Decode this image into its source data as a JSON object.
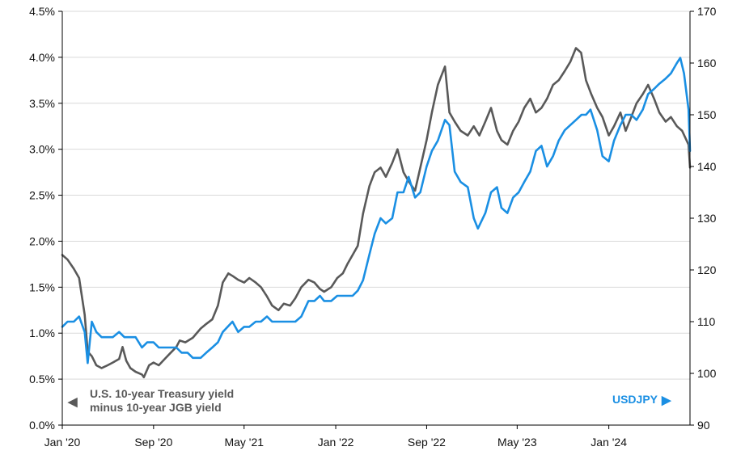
{
  "chart_data": {
    "type": "line",
    "x_tick_labels": [
      "Jan '20",
      "Sep '20",
      "May '21",
      "Jan '22",
      "Sep '22",
      "May '23",
      "Jan '24"
    ],
    "left_axis": {
      "ylim": [
        0,
        4.5
      ],
      "tick_labels": [
        "0.0%",
        "0.5%",
        "1.0%",
        "1.5%",
        "2.0%",
        "2.5%",
        "3.0%",
        "3.5%",
        "4.0%",
        "4.5%"
      ]
    },
    "right_axis": {
      "ylim": [
        90,
        170
      ],
      "tick_labels": [
        "90",
        "100",
        "110",
        "120",
        "130",
        "140",
        "150",
        "160",
        "170"
      ]
    },
    "grid": true,
    "series": [
      {
        "name": "U.S. 10-year Treasury yield minus 10-year JGB yield",
        "axis": "left",
        "color": "#595959",
        "legend_lines": [
          "U.S. 10-year Treasury yield",
          "minus 10-year JGB yield"
        ],
        "legend_marker": "◀",
        "x": [
          "2020-01-01",
          "2020-01-15",
          "2020-02-01",
          "2020-02-15",
          "2020-03-01",
          "2020-03-09",
          "2020-03-20",
          "2020-04-01",
          "2020-04-15",
          "2020-05-01",
          "2020-05-15",
          "2020-06-01",
          "2020-06-10",
          "2020-06-20",
          "2020-07-01",
          "2020-07-15",
          "2020-08-01",
          "2020-08-06",
          "2020-08-20",
          "2020-09-01",
          "2020-09-15",
          "2020-10-01",
          "2020-10-15",
          "2020-11-01",
          "2020-11-10",
          "2020-11-25",
          "2020-12-15",
          "2021-01-05",
          "2021-01-20",
          "2021-02-05",
          "2021-02-20",
          "2021-03-05",
          "2021-03-20",
          "2021-04-01",
          "2021-04-15",
          "2021-05-01",
          "2021-05-15",
          "2021-06-01",
          "2021-06-15",
          "2021-07-01",
          "2021-07-15",
          "2021-08-01",
          "2021-08-15",
          "2021-09-01",
          "2021-09-15",
          "2021-10-01",
          "2021-10-20",
          "2021-11-05",
          "2021-11-20",
          "2021-12-01",
          "2021-12-20",
          "2022-01-05",
          "2022-01-20",
          "2022-02-01",
          "2022-02-15",
          "2022-03-01",
          "2022-03-15",
          "2022-04-01",
          "2022-04-15",
          "2022-05-01",
          "2022-05-15",
          "2022-06-01",
          "2022-06-15",
          "2022-07-01",
          "2022-07-15",
          "2022-08-01",
          "2022-08-15",
          "2022-09-01",
          "2022-09-15",
          "2022-10-01",
          "2022-10-20",
          "2022-11-01",
          "2022-11-15",
          "2022-12-01",
          "2022-12-20",
          "2023-01-05",
          "2023-01-20",
          "2023-02-05",
          "2023-02-20",
          "2023-03-08",
          "2023-03-20",
          "2023-04-05",
          "2023-04-20",
          "2023-05-05",
          "2023-05-20",
          "2023-06-05",
          "2023-06-20",
          "2023-07-05",
          "2023-07-20",
          "2023-08-05",
          "2023-08-20",
          "2023-09-05",
          "2023-09-20",
          "2023-10-05",
          "2023-10-19",
          "2023-11-01",
          "2023-11-15",
          "2023-12-01",
          "2023-12-15",
          "2024-01-01",
          "2024-01-15",
          "2024-02-01",
          "2024-02-15",
          "2024-03-01",
          "2024-03-15",
          "2024-04-01",
          "2024-04-15",
          "2024-05-01",
          "2024-05-15",
          "2024-06-01",
          "2024-06-15",
          "2024-07-01",
          "2024-07-15",
          "2024-08-01",
          "2024-08-05"
        ],
        "values": [
          1.85,
          1.8,
          1.7,
          1.6,
          1.2,
          0.8,
          0.75,
          0.65,
          0.62,
          0.65,
          0.68,
          0.72,
          0.85,
          0.7,
          0.62,
          0.58,
          0.55,
          0.52,
          0.65,
          0.68,
          0.65,
          0.72,
          0.78,
          0.85,
          0.92,
          0.9,
          0.95,
          1.05,
          1.1,
          1.15,
          1.3,
          1.55,
          1.65,
          1.62,
          1.58,
          1.55,
          1.6,
          1.55,
          1.5,
          1.4,
          1.3,
          1.25,
          1.32,
          1.3,
          1.38,
          1.5,
          1.58,
          1.55,
          1.48,
          1.45,
          1.5,
          1.6,
          1.65,
          1.75,
          1.85,
          1.95,
          2.3,
          2.6,
          2.75,
          2.8,
          2.7,
          2.85,
          3.0,
          2.75,
          2.65,
          2.55,
          2.8,
          3.1,
          3.4,
          3.7,
          3.9,
          3.4,
          3.3,
          3.2,
          3.15,
          3.25,
          3.15,
          3.3,
          3.45,
          3.2,
          3.1,
          3.05,
          3.2,
          3.3,
          3.45,
          3.55,
          3.4,
          3.45,
          3.55,
          3.7,
          3.75,
          3.85,
          3.95,
          4.1,
          4.05,
          3.75,
          3.6,
          3.45,
          3.35,
          3.15,
          3.25,
          3.4,
          3.2,
          3.35,
          3.5,
          3.6,
          3.7,
          3.55,
          3.4,
          3.3,
          3.35,
          3.25,
          3.2,
          3.05,
          2.8
        ]
      },
      {
        "name": "USDJPY",
        "axis": "right",
        "color": "#1a8fe3",
        "legend_lines": [
          "USDJPY"
        ],
        "legend_marker": "▶",
        "x": [
          "2020-01-01",
          "2020-01-15",
          "2020-02-01",
          "2020-02-15",
          "2020-03-01",
          "2020-03-09",
          "2020-03-20",
          "2020-04-01",
          "2020-04-15",
          "2020-05-01",
          "2020-05-15",
          "2020-06-01",
          "2020-06-15",
          "2020-07-01",
          "2020-07-15",
          "2020-08-01",
          "2020-08-15",
          "2020-09-01",
          "2020-09-15",
          "2020-10-01",
          "2020-10-15",
          "2020-11-01",
          "2020-11-15",
          "2020-12-01",
          "2020-12-15",
          "2021-01-05",
          "2021-01-20",
          "2021-02-05",
          "2021-02-20",
          "2021-03-05",
          "2021-03-31",
          "2021-04-15",
          "2021-05-01",
          "2021-05-15",
          "2021-06-01",
          "2021-06-15",
          "2021-07-01",
          "2021-07-15",
          "2021-08-01",
          "2021-08-15",
          "2021-09-01",
          "2021-09-15",
          "2021-10-01",
          "2021-10-20",
          "2021-11-05",
          "2021-11-20",
          "2021-12-01",
          "2021-12-20",
          "2022-01-05",
          "2022-01-20",
          "2022-02-01",
          "2022-02-15",
          "2022-03-01",
          "2022-03-15",
          "2022-04-01",
          "2022-04-15",
          "2022-05-01",
          "2022-05-15",
          "2022-06-01",
          "2022-06-15",
          "2022-07-01",
          "2022-07-15",
          "2022-08-01",
          "2022-08-15",
          "2022-09-01",
          "2022-09-15",
          "2022-10-01",
          "2022-10-20",
          "2022-11-01",
          "2022-11-15",
          "2022-12-01",
          "2022-12-20",
          "2023-01-05",
          "2023-01-16",
          "2023-02-05",
          "2023-02-20",
          "2023-03-08",
          "2023-03-20",
          "2023-04-05",
          "2023-04-20",
          "2023-05-05",
          "2023-05-20",
          "2023-06-05",
          "2023-06-20",
          "2023-07-05",
          "2023-07-20",
          "2023-08-05",
          "2023-08-20",
          "2023-09-05",
          "2023-09-20",
          "2023-10-05",
          "2023-10-20",
          "2023-11-01",
          "2023-11-13",
          "2023-12-01",
          "2023-12-15",
          "2024-01-01",
          "2024-01-15",
          "2024-02-01",
          "2024-02-15",
          "2024-03-01",
          "2024-03-15",
          "2024-04-01",
          "2024-04-15",
          "2024-05-01",
          "2024-05-15",
          "2024-06-01",
          "2024-06-15",
          "2024-07-01",
          "2024-07-10",
          "2024-07-20",
          "2024-08-01",
          "2024-08-05"
        ],
        "values": [
          109,
          110,
          110,
          111,
          108,
          102,
          110,
          108,
          107,
          107,
          107,
          108,
          107,
          107,
          107,
          105,
          106,
          106,
          105,
          105,
          105,
          105,
          104,
          104,
          103,
          103,
          104,
          105,
          106,
          108,
          110,
          108,
          109,
          109,
          110,
          110,
          111,
          110,
          110,
          110,
          110,
          110,
          111,
          114,
          114,
          115,
          114,
          114,
          115,
          115,
          115,
          115,
          116,
          118,
          123,
          127,
          130,
          129,
          130,
          135,
          135,
          138,
          134,
          135,
          140,
          143,
          145,
          149,
          148,
          139,
          137,
          136,
          130,
          128,
          131,
          135,
          136,
          132,
          131,
          134,
          135,
          137,
          139,
          143,
          144,
          140,
          142,
          145,
          147,
          148,
          149,
          150,
          150,
          151,
          147,
          142,
          141,
          145,
          148,
          150,
          150,
          149,
          151,
          154,
          155,
          156,
          157,
          158,
          160,
          161,
          158,
          151,
          143
        ]
      }
    ]
  }
}
